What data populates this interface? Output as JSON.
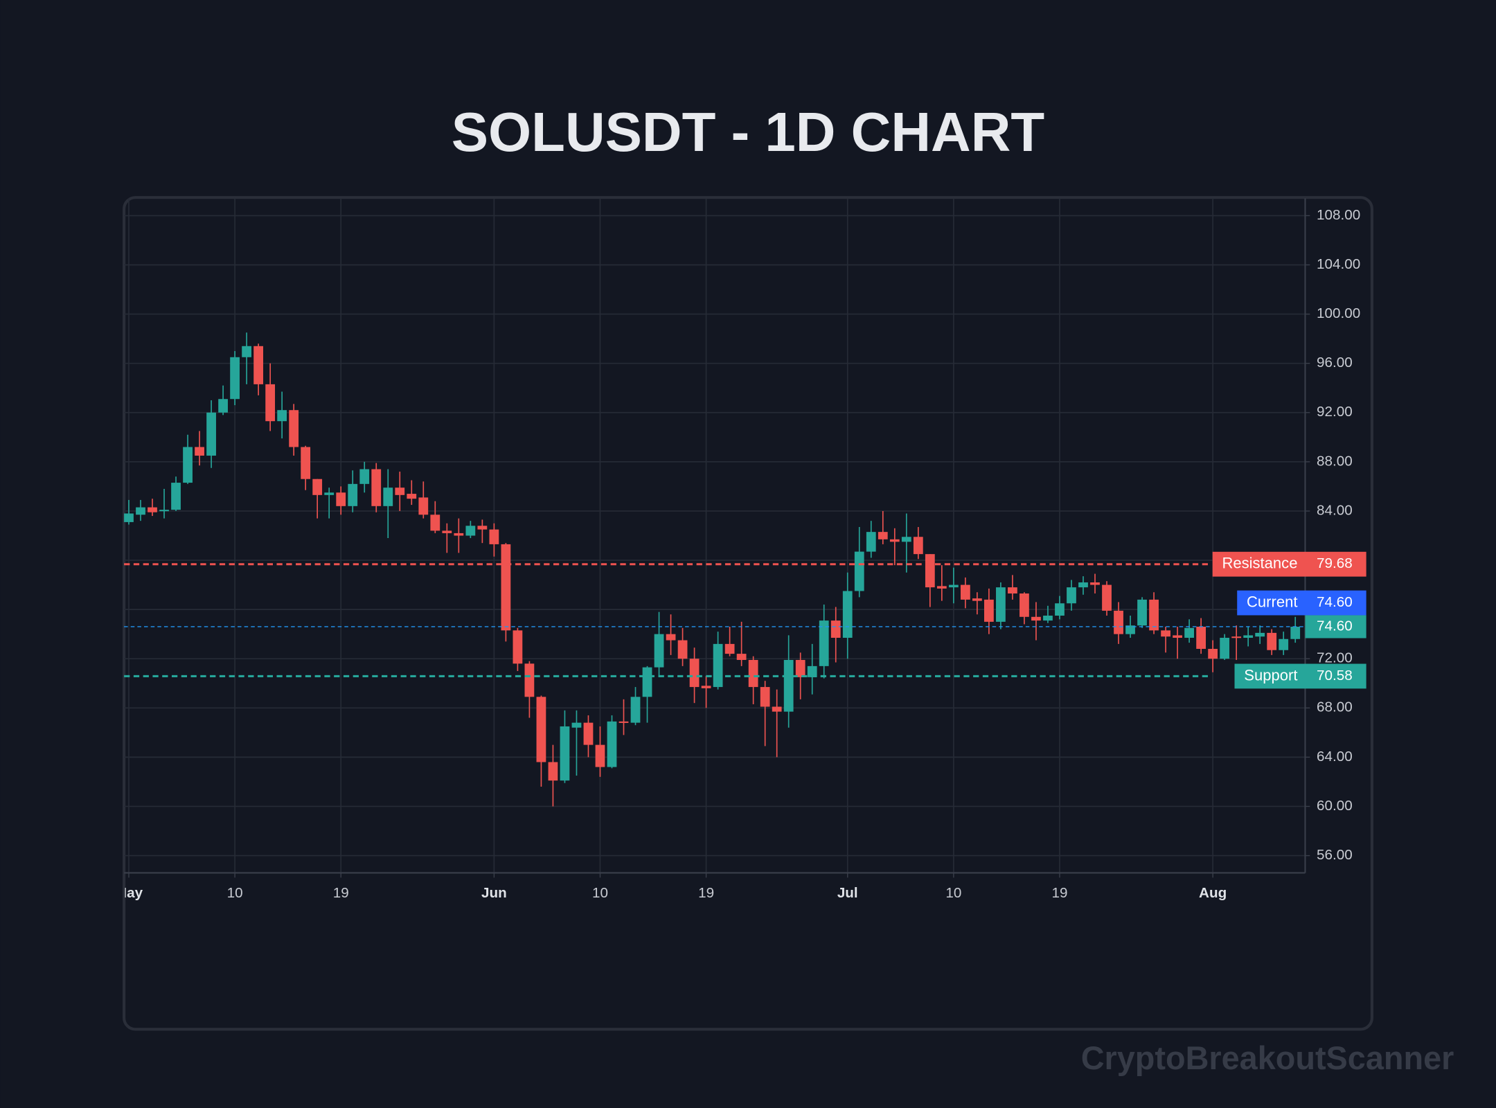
{
  "chart_data": {
    "type": "candlestick",
    "title": "SOLUSDT - 1D CHART",
    "watermark": "CryptoBreakoutScanner",
    "categories": [
      "May",
      null,
      null,
      null,
      null,
      null,
      null,
      null,
      null,
      "10",
      null,
      null,
      null,
      null,
      null,
      null,
      null,
      null,
      "19",
      null,
      null,
      null,
      null,
      null,
      null,
      null,
      null,
      null,
      null,
      null,
      null,
      "Jun",
      null,
      null,
      null,
      null,
      null,
      null,
      null,
      null,
      "10",
      null,
      null,
      null,
      null,
      null,
      null,
      null,
      null,
      "19",
      null,
      null,
      null,
      null,
      null,
      null,
      null,
      null,
      null,
      null,
      null,
      "Jul",
      null,
      null,
      null,
      null,
      null,
      null,
      null,
      null,
      "10",
      null,
      null,
      null,
      null,
      null,
      null,
      null,
      null,
      "19",
      null,
      null,
      null,
      null,
      null,
      null,
      null,
      null,
      null,
      null,
      null,
      null,
      "Aug",
      null,
      null,
      null,
      null,
      null,
      null,
      null
    ],
    "open": [
      83.1,
      83.7,
      84.3,
      84.0,
      84.1,
      86.3,
      89.2,
      88.5,
      92.0,
      93.1,
      96.5,
      97.4,
      94.3,
      91.3,
      92.2,
      89.2,
      86.6,
      85.3,
      85.5,
      84.4,
      86.2,
      87.4,
      84.4,
      85.9,
      85.4,
      85.1,
      83.7,
      82.4,
      82.2,
      82.0,
      82.8,
      82.5,
      81.3,
      74.3,
      71.6,
      68.9,
      63.6,
      62.1,
      66.4,
      66.8,
      65.0,
      63.2,
      66.9,
      66.8,
      68.9,
      71.3,
      74.0,
      73.5,
      72.0,
      69.8,
      69.7,
      73.2,
      72.4,
      71.9,
      69.7,
      68.1,
      67.7,
      71.9,
      70.5,
      71.4,
      75.1,
      73.7,
      77.5,
      80.7,
      82.3,
      81.7,
      81.5,
      81.9,
      80.5,
      77.9,
      77.8,
      78.0,
      76.9,
      76.8,
      75.0,
      77.8,
      77.3,
      75.4,
      75.1,
      75.5,
      76.5,
      77.8,
      78.2,
      78.0,
      75.9,
      74.0,
      74.7,
      76.8,
      74.3,
      73.9,
      73.7,
      74.6,
      72.8,
      72.0,
      73.8,
      73.7,
      73.8,
      74.1,
      72.7,
      73.6
    ],
    "high": [
      84.9,
      84.9,
      85.0,
      85.8,
      86.8,
      90.2,
      90.5,
      93.0,
      94.2,
      97.0,
      98.5,
      97.6,
      96.0,
      93.7,
      92.7,
      89.3,
      86.6,
      85.9,
      86.0,
      87.3,
      88.0,
      87.9,
      87.4,
      87.2,
      86.5,
      86.4,
      84.8,
      83.0,
      83.4,
      83.2,
      83.3,
      83.0,
      81.4,
      74.5,
      71.8,
      69.0,
      65.0,
      67.8,
      67.8,
      67.4,
      66.5,
      67.4,
      68.7,
      69.7,
      71.4,
      75.8,
      75.6,
      74.5,
      72.9,
      70.6,
      74.2,
      74.6,
      75.0,
      72.2,
      70.2,
      69.5,
      73.9,
      72.5,
      73.2,
      76.4,
      76.2,
      79.0,
      82.7,
      83.2,
      84.0,
      82.6,
      83.8,
      82.7,
      80.5,
      79.6,
      79.4,
      78.6,
      77.4,
      77.7,
      78.2,
      78.8,
      77.4,
      76.6,
      76.3,
      77.1,
      78.4,
      78.7,
      78.9,
      78.3,
      76.6,
      75.5,
      77.0,
      77.4,
      74.6,
      74.6,
      75.2,
      75.3,
      73.5,
      74.0,
      74.7,
      74.6,
      74.7,
      74.4,
      74.2,
      75.4
    ],
    "low": [
      82.9,
      83.2,
      83.6,
      83.4,
      84.0,
      86.2,
      87.7,
      87.5,
      91.8,
      92.6,
      94.3,
      93.4,
      90.5,
      89.9,
      88.5,
      85.7,
      83.4,
      83.4,
      83.7,
      83.9,
      85.5,
      83.9,
      81.8,
      84.0,
      84.5,
      83.4,
      82.2,
      80.6,
      80.6,
      81.8,
      81.4,
      80.3,
      73.4,
      71.0,
      67.2,
      61.6,
      60.0,
      61.9,
      62.5,
      64.0,
      62.4,
      63.1,
      65.8,
      66.6,
      66.8,
      70.6,
      72.3,
      71.4,
      68.4,
      68.0,
      69.5,
      72.2,
      71.4,
      68.3,
      64.9,
      64.0,
      66.4,
      68.7,
      69.1,
      70.4,
      71.7,
      72.0,
      77.0,
      80.2,
      81.3,
      79.6,
      79.0,
      80.1,
      76.2,
      76.7,
      76.5,
      76.1,
      75.6,
      74.0,
      74.4,
      76.8,
      74.8,
      73.5,
      74.9,
      75.2,
      75.9,
      77.2,
      77.3,
      75.5,
      73.2,
      73.7,
      74.5,
      74.0,
      72.5,
      72.0,
      73.3,
      72.4,
      70.9,
      71.9,
      71.9,
      73.0,
      73.2,
      72.3,
      72.3,
      73.3
    ],
    "close": [
      83.8,
      84.3,
      83.9,
      84.1,
      86.3,
      89.2,
      88.5,
      92.0,
      93.1,
      96.5,
      97.4,
      94.3,
      91.3,
      92.2,
      89.2,
      86.6,
      85.3,
      85.5,
      84.4,
      86.2,
      87.4,
      84.4,
      85.9,
      85.3,
      85.0,
      83.7,
      82.4,
      82.2,
      82.0,
      82.8,
      82.5,
      81.3,
      74.3,
      71.6,
      68.9,
      63.6,
      62.1,
      66.5,
      66.8,
      65.0,
      63.2,
      66.9,
      66.8,
      68.9,
      71.3,
      74.0,
      73.5,
      72.0,
      69.7,
      69.6,
      73.2,
      72.4,
      71.9,
      69.7,
      68.1,
      67.7,
      71.9,
      70.5,
      71.4,
      75.1,
      73.7,
      77.5,
      80.7,
      82.3,
      81.7,
      81.5,
      81.9,
      80.5,
      77.8,
      77.7,
      78.0,
      76.8,
      76.7,
      75.0,
      77.8,
      77.3,
      75.4,
      75.1,
      75.5,
      76.5,
      77.8,
      78.2,
      78.0,
      75.9,
      74.0,
      74.7,
      76.8,
      74.3,
      73.8,
      73.7,
      74.5,
      72.8,
      72.0,
      73.7,
      73.7,
      73.9,
      74.1,
      72.7,
      73.6,
      74.6
    ],
    "up_color": "#26a69a",
    "down_color": "#ef5350",
    "ylim": [
      54.6,
      109.4
    ],
    "yticks": [
      {
        "value": 56,
        "label": "56.00"
      },
      {
        "value": 60,
        "label": "60.00"
      },
      {
        "value": 64,
        "label": "64.00"
      },
      {
        "value": 68,
        "label": "68.00"
      },
      {
        "value": 72,
        "label": "72.00"
      },
      {
        "value": 76,
        "label": "76.00"
      },
      {
        "value": 80,
        "label": "80.00"
      },
      {
        "value": 84,
        "label": "84.00"
      },
      {
        "value": 88,
        "label": "88.00"
      },
      {
        "value": 92,
        "label": "92.00"
      },
      {
        "value": 96,
        "label": "96.00"
      },
      {
        "value": 100,
        "label": "100.00"
      },
      {
        "value": 104,
        "label": "104.00"
      },
      {
        "value": 108,
        "label": "108.00"
      }
    ],
    "grid": true,
    "levels": [
      {
        "name": "Resistance",
        "value": 79.68,
        "color": "#ef5350",
        "line_color": "#ef5350"
      },
      {
        "name": "Current",
        "value": 74.6,
        "value_label": "74.60",
        "color": "#2962ff",
        "line_color": "#2196f3"
      },
      {
        "name": "Support",
        "value": 70.58,
        "color": "#26a69a",
        "line_color": "#26a69a"
      }
    ]
  }
}
